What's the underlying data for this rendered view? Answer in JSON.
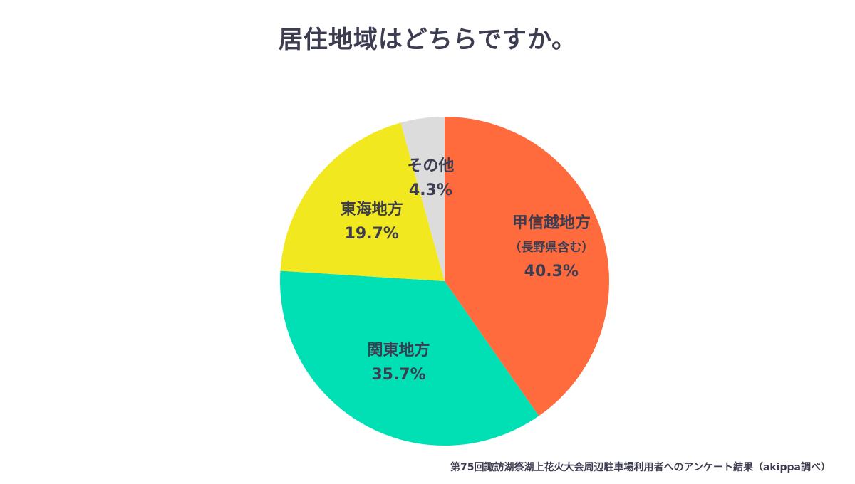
{
  "colors": {
    "text": "#3d3d52",
    "background": "#ffffff"
  },
  "chart_data": {
    "type": "pie",
    "title": "居住地域はどちらですか。",
    "unit": "%",
    "start_angle_deg": 0,
    "direction": "clockwise",
    "slices": [
      {
        "name": "甲信越地方",
        "sublabel": "（長野県含む）",
        "value": 40.3,
        "value_label": "40.3%",
        "color": "#ff6b3d"
      },
      {
        "name": "関東地方",
        "sublabel": "",
        "value": 35.7,
        "value_label": "35.7%",
        "color": "#00e0b4"
      },
      {
        "name": "東海地方",
        "sublabel": "",
        "value": 19.7,
        "value_label": "19.7%",
        "color": "#f2e81f"
      },
      {
        "name": "その他",
        "sublabel": "",
        "value": 4.3,
        "value_label": "4.3%",
        "color": "#dcdcdc"
      }
    ]
  },
  "footnote": "第75回諏訪湖祭湖上花火大会周辺駐車場利用者へのアンケート結果（akippa調べ）"
}
